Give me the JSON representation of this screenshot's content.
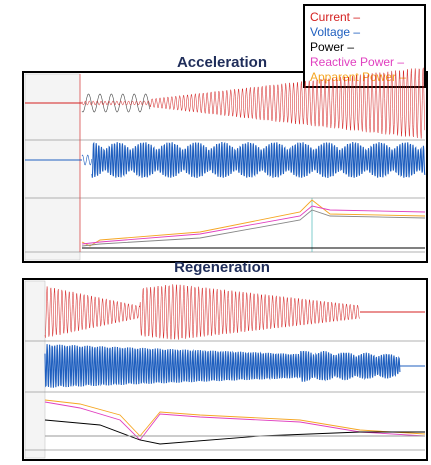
{
  "legend": {
    "items": [
      "Current –",
      "Voltage –",
      "Power –",
      "Reactive Power –",
      "Apparent Power –"
    ]
  },
  "panels": [
    {
      "title": "Acceleration"
    },
    {
      "title": "Regeneration"
    }
  ]
}
